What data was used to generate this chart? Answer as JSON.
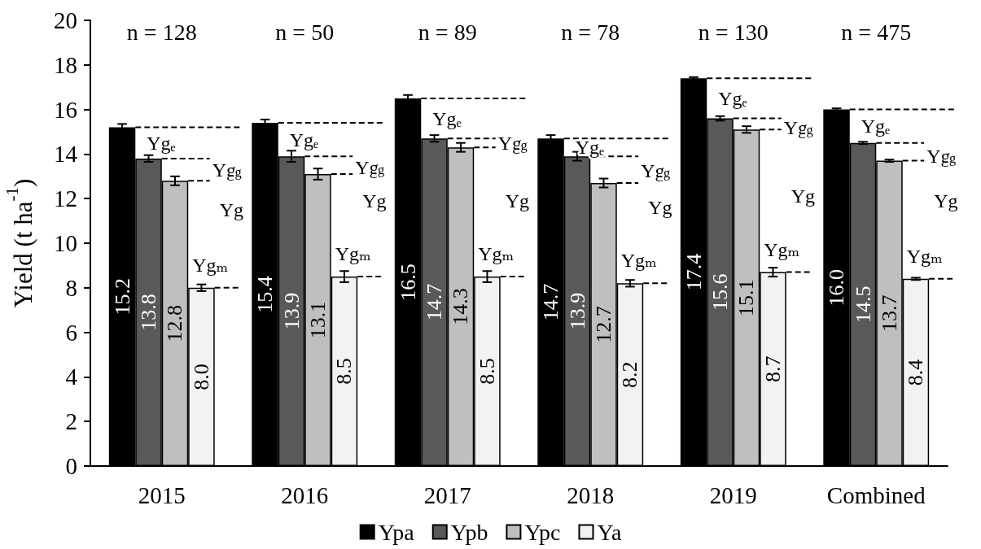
{
  "chart_data": {
    "type": "bar",
    "ylabel": "Yield (t ha$^{-1}$)",
    "categories": [
      "2015",
      "2016",
      "2017",
      "2018",
      "2019",
      "Combined"
    ],
    "series": [
      {
        "name": "Ypa",
        "color": "#000000",
        "values": [
          15.2,
          15.4,
          16.5,
          14.7,
          17.4,
          16.0
        ],
        "value_labels": [
          "15.2",
          "15.4",
          "16.5",
          "14.7",
          "17.4",
          "16.0"
        ],
        "errors": [
          0.15,
          0.15,
          0.15,
          0.15,
          0.05,
          0.05
        ]
      },
      {
        "name": "Ypb",
        "color": "#595959",
        "values": [
          13.8,
          13.9,
          14.7,
          13.9,
          15.6,
          14.5
        ],
        "value_labels": [
          "13.8",
          "13.9",
          "14.7",
          "13.9",
          "15.6",
          "14.5"
        ],
        "errors": [
          0.15,
          0.25,
          0.15,
          0.2,
          0.1,
          0.05
        ]
      },
      {
        "name": "Ypc",
        "color": "#bfbfbf",
        "values": [
          12.8,
          13.1,
          14.3,
          12.7,
          15.1,
          13.7
        ],
        "value_labels": [
          "12.8",
          "13.1",
          "14.3",
          "12.7",
          "15.1",
          "13.7"
        ],
        "errors": [
          0.2,
          0.25,
          0.2,
          0.2,
          0.15,
          0.05
        ]
      },
      {
        "name": "Ya",
        "color": "#f2f2f2",
        "values": [
          8.0,
          8.5,
          8.5,
          8.2,
          8.7,
          8.4
        ],
        "value_labels": [
          "8.0",
          "8.5",
          "8.5",
          "8.2",
          "8.7",
          "8.4"
        ],
        "errors": [
          0.15,
          0.25,
          0.25,
          0.15,
          0.2,
          0.05
        ]
      }
    ],
    "ylim": [
      0,
      20
    ],
    "yticks": [
      0,
      2,
      4,
      6,
      8,
      10,
      12,
      14,
      16,
      18,
      20
    ],
    "grid": false,
    "legend": "bottom",
    "annotations": [
      "n = 128",
      "Ygₑ",
      {
        "text": "Yg$_{g}$",
        "x": "2015",
        "y": 13.3
      },
      {
        "text": "Yg",
        "x": "2015",
        "y": 11.5
      },
      "Ygₘ",
      "n = 50",
      "Ygₑ",
      {
        "text": "Yg$_{g}$",
        "x": "2016",
        "y": 13.4
      },
      {
        "text": "Yg",
        "x": "2016",
        "y": 11.9
      },
      "Ygₘ",
      "n = 89",
      "Ygₑ",
      {
        "text": "Yg$_{g}$",
        "x": "2017",
        "y": 14.5
      },
      {
        "text": "Yg",
        "x": "2017",
        "y": 11.9
      },
      "Ygₘ",
      "n = 78",
      "Ygₑ",
      {
        "text": "Yg$_{g}$",
        "x": "2018",
        "y": 13.25
      },
      {
        "text": "Yg",
        "x": "2018",
        "y": 11.6
      },
      "Ygₘ",
      "n = 130",
      "Ygₑ",
      {
        "text": "Yg$_{g}$",
        "x": "2019",
        "y": 15.2
      },
      {
        "text": "Yg",
        "x": "2019",
        "y": 12.1
      },
      "Ygₘ",
      "n = 475",
      "Ygₑ",
      {
        "text": "Yg$_{g}$",
        "x": "Combined",
        "y": 13.9
      },
      {
        "text": "Yg",
        "x": "Combined",
        "y": 11.9
      },
      "Ygₘ"
    ]
  }
}
